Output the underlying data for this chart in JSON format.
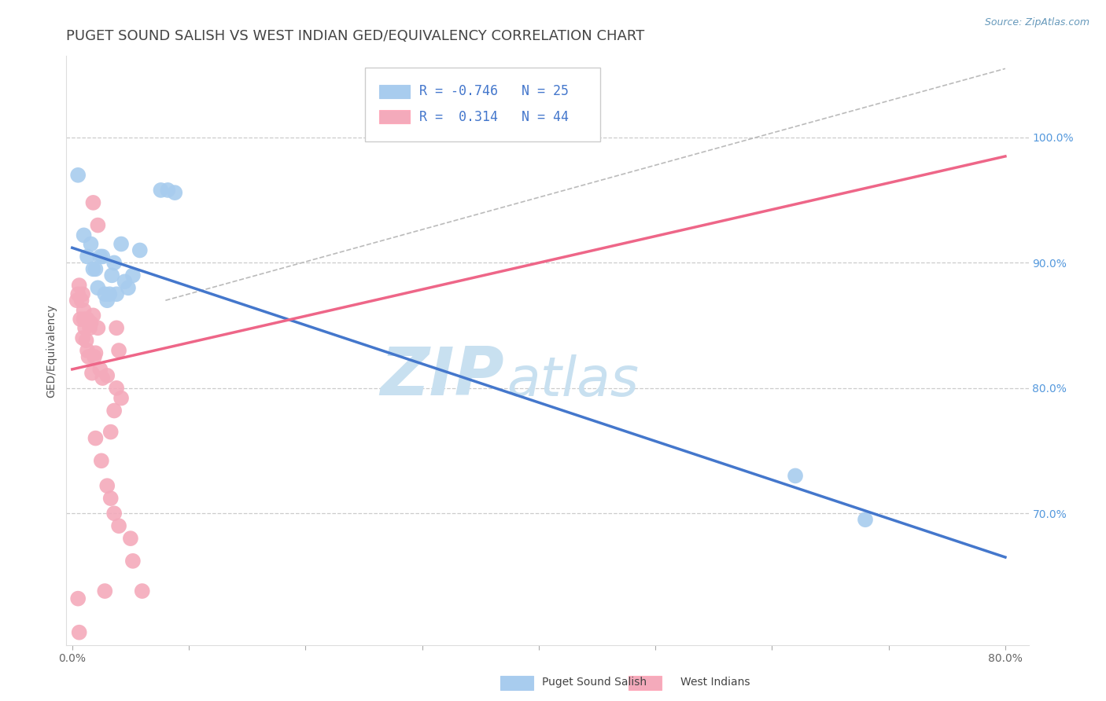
{
  "title": "PUGET SOUND SALISH VS WEST INDIAN GED/EQUIVALENCY CORRELATION CHART",
  "source": "Source: ZipAtlas.com",
  "ylabel": "GED/Equivalency",
  "xlim": [
    -0.005,
    0.82
  ],
  "ylim": [
    0.595,
    1.065
  ],
  "xticks": [
    0.0,
    0.1,
    0.2,
    0.3,
    0.4,
    0.5,
    0.6,
    0.7,
    0.8
  ],
  "xticklabels": [
    "0.0%",
    "",
    "",
    "",
    "",
    "",
    "",
    "",
    "80.0%"
  ],
  "yticks_right": [
    0.7,
    0.8,
    0.9,
    1.0
  ],
  "ytick_right_labels": [
    "70.0%",
    "80.0%",
    "90.0%",
    "100.0%"
  ],
  "blue_R": -0.746,
  "blue_N": 25,
  "pink_R": 0.314,
  "pink_N": 44,
  "blue_color": "#A8CCEE",
  "pink_color": "#F4AABB",
  "blue_line_color": "#4477CC",
  "pink_line_color": "#EE6688",
  "diagonal_color": "#BBBBBB",
  "grid_color": "#CCCCCC",
  "title_color": "#444444",
  "legend_label_blue": "Puget Sound Salish",
  "legend_label_pink": "West Indians",
  "blue_points": [
    [
      0.005,
      0.97
    ],
    [
      0.01,
      0.922
    ],
    [
      0.013,
      0.905
    ],
    [
      0.016,
      0.915
    ],
    [
      0.018,
      0.895
    ],
    [
      0.02,
      0.895
    ],
    [
      0.022,
      0.88
    ],
    [
      0.024,
      0.905
    ],
    [
      0.026,
      0.905
    ],
    [
      0.028,
      0.875
    ],
    [
      0.03,
      0.87
    ],
    [
      0.032,
      0.875
    ],
    [
      0.034,
      0.89
    ],
    [
      0.036,
      0.9
    ],
    [
      0.038,
      0.875
    ],
    [
      0.042,
      0.915
    ],
    [
      0.045,
      0.885
    ],
    [
      0.048,
      0.88
    ],
    [
      0.052,
      0.89
    ],
    [
      0.058,
      0.91
    ],
    [
      0.076,
      0.958
    ],
    [
      0.082,
      0.958
    ],
    [
      0.088,
      0.956
    ],
    [
      0.62,
      0.73
    ],
    [
      0.68,
      0.695
    ]
  ],
  "pink_points": [
    [
      0.004,
      0.87
    ],
    [
      0.005,
      0.875
    ],
    [
      0.006,
      0.882
    ],
    [
      0.007,
      0.855
    ],
    [
      0.008,
      0.87
    ],
    [
      0.009,
      0.84
    ],
    [
      0.009,
      0.875
    ],
    [
      0.01,
      0.855
    ],
    [
      0.01,
      0.862
    ],
    [
      0.011,
      0.848
    ],
    [
      0.012,
      0.838
    ],
    [
      0.013,
      0.855
    ],
    [
      0.013,
      0.83
    ],
    [
      0.014,
      0.825
    ],
    [
      0.015,
      0.848
    ],
    [
      0.016,
      0.852
    ],
    [
      0.017,
      0.812
    ],
    [
      0.018,
      0.858
    ],
    [
      0.019,
      0.825
    ],
    [
      0.02,
      0.828
    ],
    [
      0.022,
      0.848
    ],
    [
      0.024,
      0.815
    ],
    [
      0.026,
      0.808
    ],
    [
      0.03,
      0.81
    ],
    [
      0.033,
      0.765
    ],
    [
      0.036,
      0.782
    ],
    [
      0.038,
      0.8
    ],
    [
      0.04,
      0.83
    ],
    [
      0.042,
      0.792
    ],
    [
      0.018,
      0.948
    ],
    [
      0.022,
      0.93
    ],
    [
      0.038,
      0.848
    ],
    [
      0.05,
      0.68
    ],
    [
      0.052,
      0.662
    ],
    [
      0.028,
      0.638
    ],
    [
      0.06,
      0.638
    ],
    [
      0.02,
      0.76
    ],
    [
      0.025,
      0.742
    ],
    [
      0.03,
      0.722
    ],
    [
      0.033,
      0.712
    ],
    [
      0.036,
      0.7
    ],
    [
      0.04,
      0.69
    ],
    [
      0.005,
      0.632
    ],
    [
      0.006,
      0.605
    ]
  ],
  "blue_line": {
    "x0": 0.0,
    "y0": 0.912,
    "x1": 0.8,
    "y1": 0.665
  },
  "pink_line": {
    "x0": 0.0,
    "y0": 0.815,
    "x1": 0.8,
    "y1": 0.985
  },
  "diag_line": {
    "x0": 0.08,
    "y0": 0.87,
    "x1": 0.8,
    "y1": 1.055
  },
  "watermark_zip": "ZIP",
  "watermark_atlas": "atlas",
  "watermark_color": "#C8E0F0",
  "background_color": "#FFFFFF",
  "title_fontsize": 13,
  "axis_label_fontsize": 10,
  "tick_fontsize": 10,
  "legend_fontsize": 12,
  "source_fontsize": 9,
  "right_tick_color": "#5599DD"
}
